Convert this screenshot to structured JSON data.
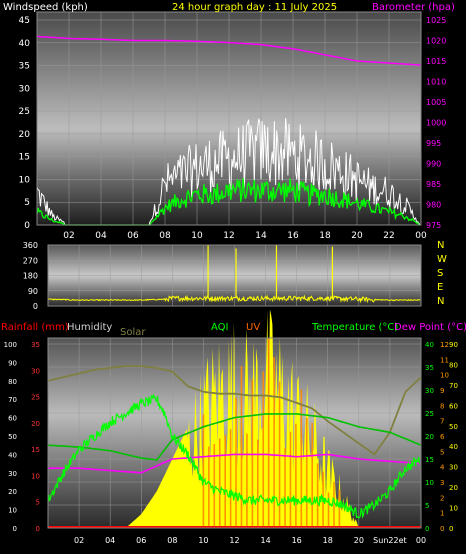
{
  "chart_data": [
    {
      "type": "line",
      "title": "24 hour graph day : 11 July 2025",
      "left_axis_label": "Windspeed (kph)",
      "right_axis_label": "Barometer (hpa)",
      "x_tick_labels": [
        "02",
        "04",
        "06",
        "08",
        "10",
        "12",
        "14",
        "16",
        "18",
        "20",
        "22",
        "00"
      ],
      "ylim_left": [
        0,
        45
      ],
      "yticks_left": [
        0,
        5,
        10,
        15,
        20,
        25,
        30,
        35,
        40,
        45
      ],
      "ylim_right": [
        975,
        1025
      ],
      "yticks_right": [
        975,
        980,
        985,
        990,
        995,
        1000,
        1005,
        1010,
        1015,
        1020,
        1025
      ],
      "grid": true,
      "series": [
        {
          "name": "Barometer (hpa)",
          "color": "#ff00ff",
          "x": [
            0,
            2,
            4,
            6,
            8,
            10,
            12,
            14,
            16,
            18,
            20,
            22,
            24
          ],
          "y": [
            1021,
            1020.5,
            1020.3,
            1020,
            1020,
            1019.8,
            1019.5,
            1019,
            1018,
            1016.5,
            1015,
            1014.5,
            1014
          ]
        },
        {
          "name": "wind gust",
          "color": "#ffffff",
          "x": [
            0,
            1,
            2,
            3,
            4,
            5,
            6,
            7,
            7.5,
            8,
            9,
            10,
            11,
            12,
            13,
            14,
            15,
            16,
            17,
            18,
            19,
            20,
            21,
            22,
            23,
            24
          ],
          "y": [
            8,
            2,
            0,
            0,
            0,
            0,
            0,
            0,
            5,
            10,
            12,
            14,
            15,
            16,
            17,
            18,
            18,
            17,
            16,
            15,
            13,
            11,
            9,
            8,
            5,
            0
          ]
        },
        {
          "name": "wind average",
          "color": "#00ff00",
          "x": [
            0,
            1,
            2,
            3,
            4,
            5,
            6,
            7,
            7.5,
            8,
            9,
            10,
            11,
            12,
            13,
            14,
            15,
            16,
            17,
            18,
            19,
            20,
            21,
            22,
            23,
            24
          ],
          "y": [
            3,
            1,
            0,
            0,
            0,
            0,
            0,
            0,
            2,
            4,
            6,
            7,
            7,
            8,
            8,
            8,
            8,
            8,
            7,
            7,
            6,
            5,
            4,
            3,
            2,
            0
          ]
        }
      ]
    },
    {
      "type": "line",
      "left_axis_label": "",
      "ylim": [
        0,
        360
      ],
      "yticks": [
        0,
        90,
        180,
        270,
        360
      ],
      "right_direction_labels": [
        "N",
        "W",
        "S",
        "E",
        "N"
      ],
      "grid": true,
      "series": [
        {
          "name": "wind direction",
          "color": "#ffff00",
          "x": [
            0,
            2,
            4,
            6,
            7.5,
            8,
            10,
            12,
            14,
            16,
            18,
            20,
            22,
            24
          ],
          "y": [
            40,
            35,
            35,
            35,
            40,
            45,
            45,
            45,
            45,
            45,
            45,
            40,
            35,
            35
          ]
        }
      ],
      "spikes": [
        {
          "x": 10.3,
          "y": 360
        },
        {
          "x": 12.1,
          "y": 340
        },
        {
          "x": 14.7,
          "y": 360
        },
        {
          "x": 18.3,
          "y": 350
        }
      ]
    },
    {
      "type": "line",
      "legend_labels": {
        "rain": "Rainfall (mm)",
        "humidity": "Humidity",
        "solar": "Solar",
        "aqi": "AQI",
        "uv": "UV",
        "temperature": "Temperature (°C)",
        "dew": "Dew Point (°C)"
      },
      "x_tick_labels": [
        "02",
        "04",
        "06",
        "08",
        "10",
        "12",
        "14",
        "16",
        "18",
        "20",
        "Sun22et",
        "00"
      ],
      "y_left_humidity": [
        0,
        10,
        20,
        30,
        40,
        50,
        60,
        70,
        80,
        90,
        100
      ],
      "y_left_rain": [
        0,
        5,
        10,
        15,
        20,
        25,
        30,
        35
      ],
      "y_right_temperature": [
        0,
        5,
        10,
        15,
        20,
        25,
        30,
        35,
        40
      ],
      "y_right_uv": [
        0,
        1,
        2,
        3,
        4,
        5,
        6,
        7,
        8,
        9,
        10,
        11,
        12
      ],
      "y_right_aqi": [
        0,
        10,
        20,
        30,
        40,
        50,
        60,
        70,
        80,
        90
      ],
      "colors": {
        "rain": "#ff0000",
        "humidity": "#d0d0d0",
        "solar": "#808040",
        "aqi": "#00ff00",
        "uv": "#ff6600",
        "temperature": "#00ff00",
        "dew": "#ff00ff"
      },
      "series": [
        {
          "name": "Solar",
          "color": "#808040",
          "x": [
            0,
            1,
            2,
            3,
            4,
            5,
            6,
            7,
            8,
            9,
            10,
            11,
            12,
            13,
            14,
            15,
            16,
            17,
            18,
            19,
            20,
            21,
            22,
            23,
            24
          ],
          "y": [
            80,
            82,
            84,
            86,
            87,
            88,
            88,
            87,
            85,
            77,
            74,
            73,
            73,
            72,
            72,
            71,
            68,
            65,
            58,
            52,
            46,
            40,
            52,
            74,
            82
          ]
        },
        {
          "name": "Temperature (°C)",
          "color": "#00ff00",
          "x": [
            0,
            1,
            2,
            3,
            4,
            5,
            6,
            7,
            7.5,
            8,
            9,
            10,
            11,
            12,
            13,
            14,
            15,
            16,
            17,
            18,
            19,
            20,
            21,
            22,
            23,
            24
          ],
          "y": [
            6,
            12,
            17,
            20,
            23,
            25,
            27,
            28,
            25,
            20,
            16,
            10,
            8,
            7,
            6,
            6,
            6,
            6,
            6,
            6,
            5,
            3,
            5,
            8,
            13,
            15
          ]
        },
        {
          "name": "Dew Point (°C)",
          "color": "#ff00ff",
          "x": [
            0,
            2,
            4,
            6,
            8,
            10,
            12,
            14,
            16,
            18,
            20,
            22,
            24
          ],
          "y": [
            13,
            13,
            12.5,
            12,
            15,
            15.5,
            16,
            16,
            15.5,
            16,
            15,
            14.5,
            14
          ]
        },
        {
          "name": "Humidity",
          "color": "#00c000",
          "x": [
            0,
            2,
            4,
            6,
            7,
            8,
            10,
            12,
            14,
            16,
            18,
            20,
            22,
            24
          ],
          "y": [
            45,
            44,
            42,
            38,
            37,
            48,
            55,
            60,
            62,
            62,
            60,
            55,
            52,
            45
          ]
        },
        {
          "name": "solar radiation",
          "color": "#ffff00",
          "x": [
            5,
            6,
            7,
            8,
            9,
            10,
            11,
            12,
            13,
            14,
            15,
            16,
            17,
            18,
            19,
            20
          ],
          "y": [
            0,
            3,
            8,
            15,
            22,
            30,
            36,
            38,
            35,
            40,
            36,
            30,
            24,
            15,
            8,
            0
          ]
        }
      ]
    }
  ]
}
